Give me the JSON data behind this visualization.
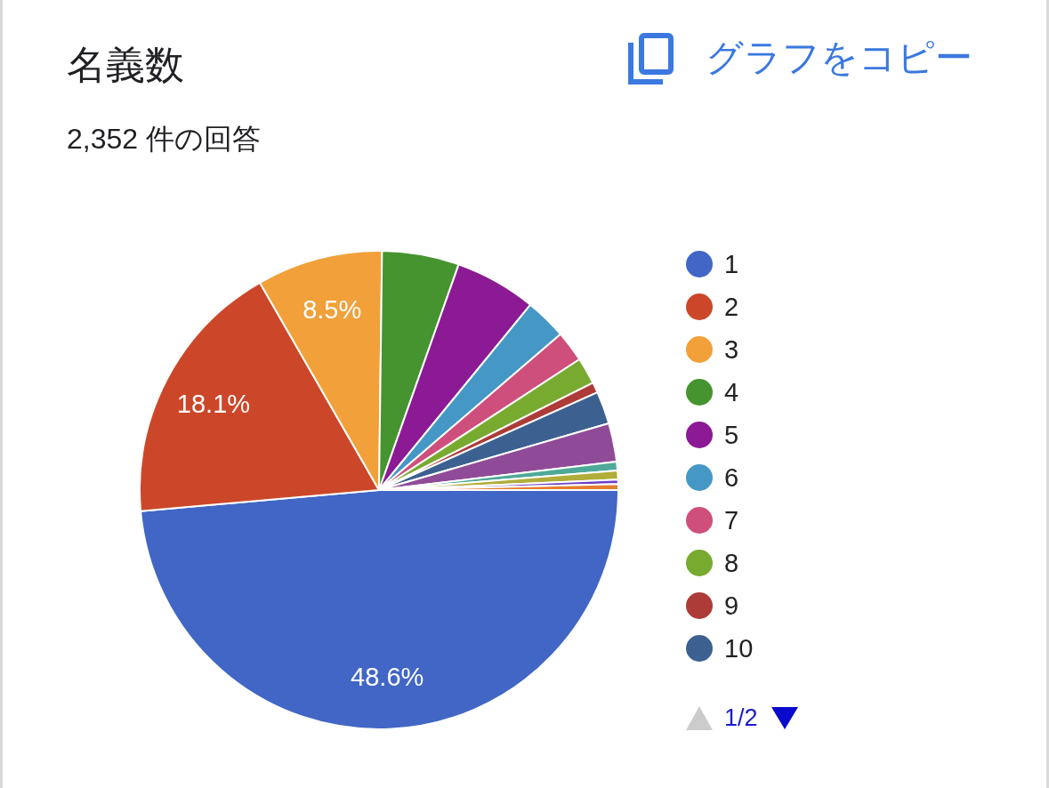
{
  "chart_data": {
    "type": "pie",
    "title": "名義数",
    "subtitle": "2,352 件の回答",
    "categories": [
      "1",
      "2",
      "3",
      "4",
      "5",
      "6",
      "7",
      "8",
      "9",
      "10",
      null,
      null,
      null,
      null,
      null
    ],
    "values": [
      48.6,
      18.1,
      8.5,
      5.2,
      5.5,
      2.8,
      2.1,
      1.8,
      0.7,
      2.2,
      2.6,
      0.6,
      0.6,
      0.3,
      0.4
    ],
    "colors": [
      "#4166c5",
      "#cc4729",
      "#f1a03a",
      "#45942f",
      "#8b1a94",
      "#4598c5",
      "#cf4f7c",
      "#79aa30",
      "#ad3b38",
      "#3c6190",
      "#8f4b98",
      "#4ea999",
      "#b0ad3a",
      "#6a3fc4",
      "#e47f2d"
    ],
    "value_labels": [
      "48.6%",
      "18.1%",
      "8.5%",
      null,
      null,
      null,
      null,
      null,
      null,
      null,
      null,
      null,
      null,
      null,
      null
    ],
    "legend": "right",
    "annotations": [
      "グラフをコピー",
      "1/2"
    ]
  }
}
